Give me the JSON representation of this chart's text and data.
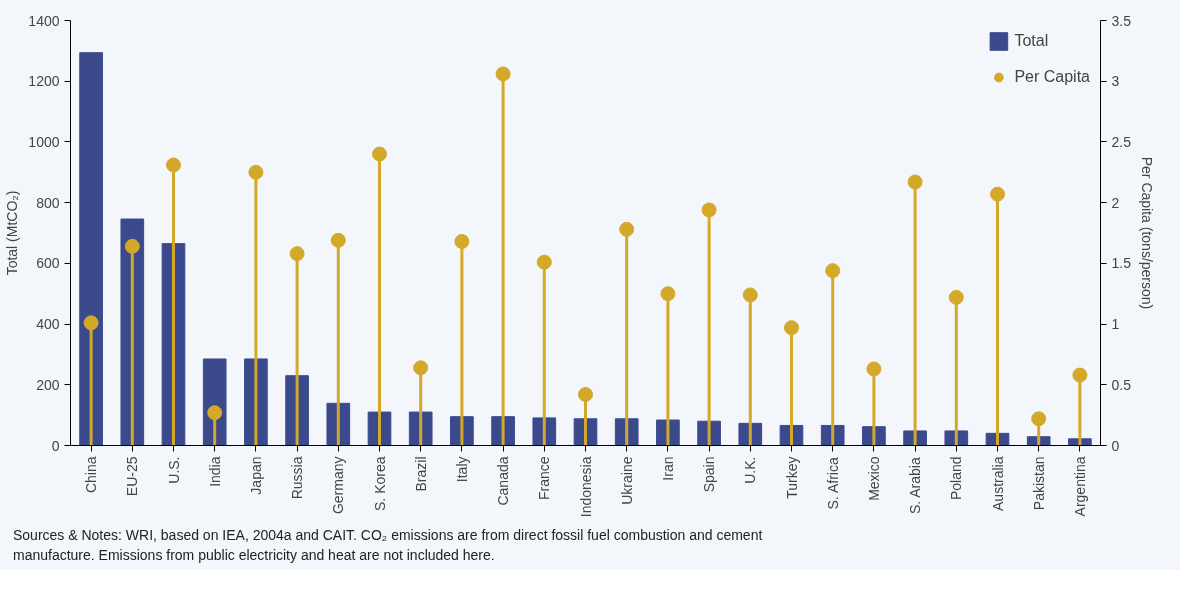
{
  "chart_data": {
    "type": "bar",
    "categories": [
      "China",
      "EU-25",
      "U.S.",
      "India",
      "Japan",
      "Russia",
      "Germany",
      "S. Korea",
      "Brazil",
      "Italy",
      "Canada",
      "France",
      "Indonesia",
      "Ukraine",
      "Iran",
      "Spain",
      "U.K.",
      "Turkey",
      "S. Africa",
      "Mexico",
      "S. Arabia",
      "Poland",
      "Australia",
      "Pakistan",
      "Argentina"
    ],
    "series": [
      {
        "name": "Total",
        "color": "#3b4a8c",
        "values": [
          1294,
          746,
          665,
          285,
          285,
          230,
          139,
          110,
          110,
          95,
          95,
          91,
          88,
          88,
          84,
          80,
          73,
          66,
          66,
          62,
          48,
          48,
          40,
          29,
          22
        ]
      },
      {
        "name": "Per Capita",
        "type": "lollipop",
        "axis": "y2",
        "color": "#d4a92a",
        "values": [
          1.01,
          1.64,
          2.31,
          0.27,
          2.25,
          1.58,
          1.69,
          2.4,
          0.64,
          1.68,
          3.06,
          1.51,
          0.42,
          1.78,
          1.25,
          1.94,
          1.24,
          0.97,
          1.44,
          0.63,
          2.17,
          1.22,
          2.07,
          0.22,
          0.58
        ]
      }
    ],
    "ylabel": "Total (MtCO₂)",
    "y2label": "Per Capita (tons/person)",
    "ylim": [
      0,
      1400
    ],
    "yticks": [
      0,
      200,
      400,
      600,
      800,
      1000,
      1200,
      1400
    ],
    "y2lim": [
      0,
      3.5
    ],
    "y2ticks": [
      0,
      0.5,
      1,
      1.5,
      2,
      2.5,
      3,
      3.5
    ],
    "legend": "top right",
    "grid": false,
    "marker": "circle",
    "annotations": [
      "Sources & Notes: WRI, based on IEA, 2004a and CAIT. CO₂ emissions are from direct fossil fuel combustion and cement manufacture. Emissions from public electricity and heat are not included here."
    ]
  }
}
